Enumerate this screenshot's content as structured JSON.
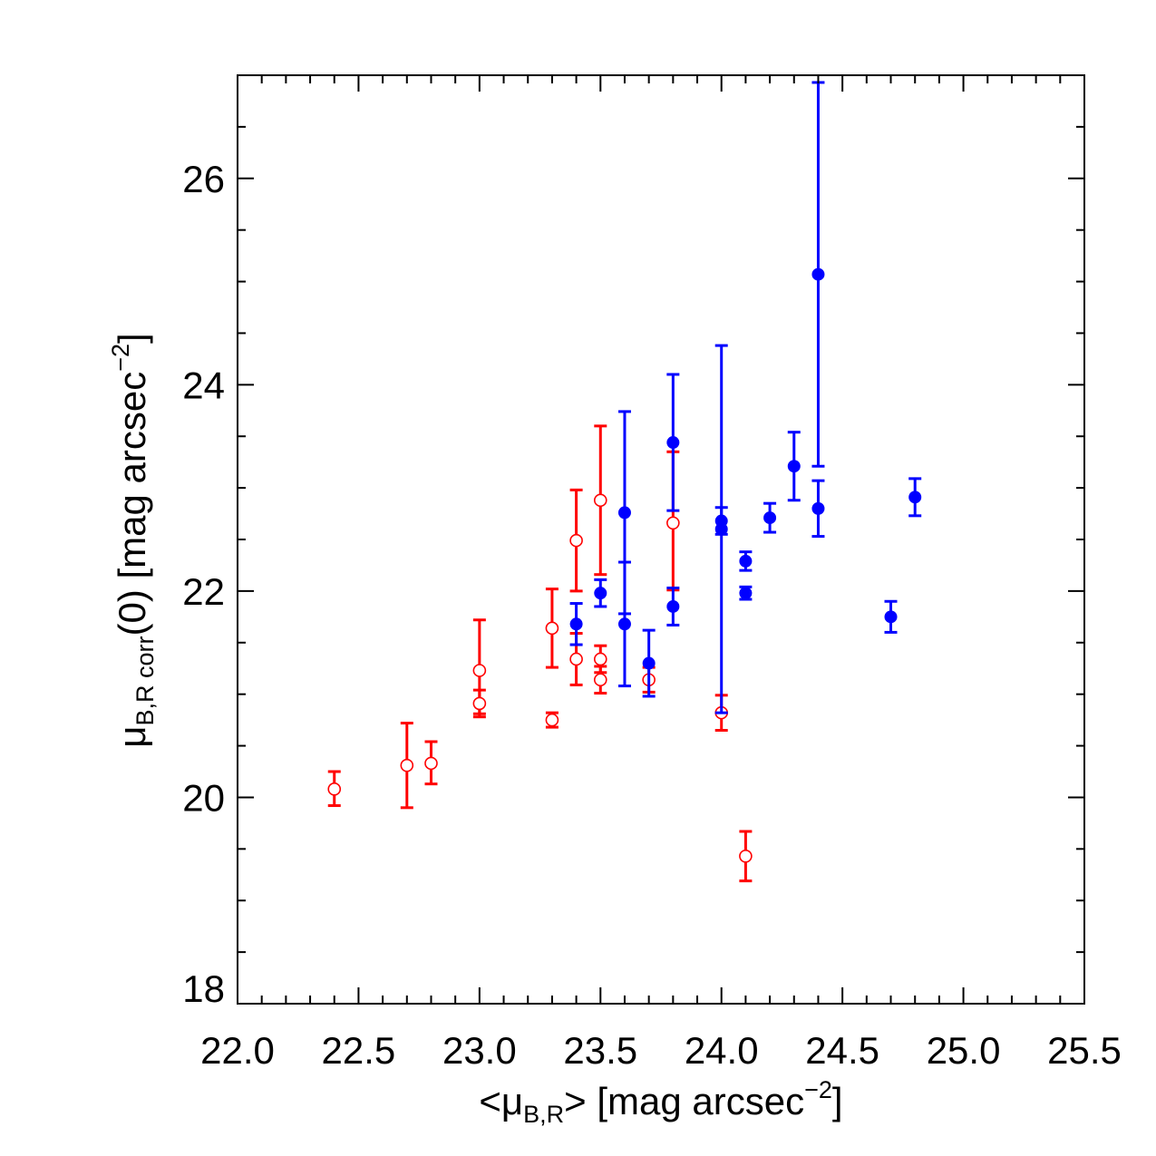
{
  "chart_data": {
    "type": "scatter",
    "title": "",
    "xlabel": {
      "prefix": "<μ",
      "sub": "B,R",
      "mid": "> [mag arcsec",
      "sup": "−2",
      "suffix": "]"
    },
    "ylabel": {
      "prefix": "μ",
      "sub": "B,R corr",
      "mid": "(0) [mag arcsec",
      "sup": "−2",
      "suffix": "]"
    },
    "xlim": [
      22.0,
      25.5
    ],
    "ylim": [
      18.0,
      27.0
    ],
    "x_ticks": [
      22.0,
      22.5,
      23.0,
      23.5,
      24.0,
      24.5,
      25.0,
      25.5
    ],
    "x_tick_labels": [
      "22.0",
      "22.5",
      "23.0",
      "23.5",
      "24.0",
      "24.5",
      "25.0",
      "25.5"
    ],
    "y_ticks": [
      18,
      20,
      22,
      24,
      26
    ],
    "y_tick_labels": [
      "18",
      "20",
      "22",
      "24",
      "26"
    ],
    "x_minor_step": 0.1,
    "y_minor_step": 0.5,
    "grid": false,
    "legend": "none",
    "series": [
      {
        "marker": "open-circle",
        "color": "#ff0000",
        "points": [
          {
            "x": 22.4,
            "y": 20.08,
            "err_lo": 0.16,
            "err_hi": 0.17
          },
          {
            "x": 22.7,
            "y": 20.31,
            "err_lo": 0.41,
            "err_hi": 0.41
          },
          {
            "x": 22.8,
            "y": 20.33,
            "err_lo": 0.2,
            "err_hi": 0.21
          },
          {
            "x": 23.0,
            "y": 21.23,
            "err_lo": 0.42,
            "err_hi": 0.49
          },
          {
            "x": 23.0,
            "y": 20.91,
            "err_lo": 0.13,
            "err_hi": 0.13
          },
          {
            "x": 23.3,
            "y": 20.75,
            "err_lo": 0.07,
            "err_hi": 0.07
          },
          {
            "x": 23.3,
            "y": 21.64,
            "err_lo": 0.38,
            "err_hi": 0.38
          },
          {
            "x": 23.4,
            "y": 22.49,
            "err_lo": 0.49,
            "err_hi": 0.49
          },
          {
            "x": 23.4,
            "y": 21.34,
            "err_lo": 0.25,
            "err_hi": 0.25
          },
          {
            "x": 23.5,
            "y": 22.88,
            "err_lo": 0.72,
            "err_hi": 0.72
          },
          {
            "x": 23.5,
            "y": 21.34,
            "err_lo": 0.13,
            "err_hi": 0.13
          },
          {
            "x": 23.5,
            "y": 21.14,
            "err_lo": 0.13,
            "err_hi": 0.13
          },
          {
            "x": 23.7,
            "y": 21.14,
            "err_lo": 0.12,
            "err_hi": 0.12
          },
          {
            "x": 23.8,
            "y": 22.66,
            "err_lo": 0.65,
            "err_hi": 0.69
          },
          {
            "x": 24.0,
            "y": 20.82,
            "err_lo": 0.17,
            "err_hi": 0.17
          },
          {
            "x": 24.1,
            "y": 19.43,
            "err_lo": 0.24,
            "err_hi": 0.24
          }
        ]
      },
      {
        "marker": "filled-circle",
        "color": "#0000ff",
        "points": [
          {
            "x": 23.4,
            "y": 21.68,
            "err_lo": 0.2,
            "err_hi": 0.2
          },
          {
            "x": 23.5,
            "y": 21.98,
            "err_lo": 0.13,
            "err_hi": 0.13
          },
          {
            "x": 23.6,
            "y": 22.76,
            "err_lo": 0.98,
            "err_hi": 0.98
          },
          {
            "x": 23.6,
            "y": 21.68,
            "err_lo": 0.6,
            "err_hi": 0.6
          },
          {
            "x": 23.7,
            "y": 21.3,
            "err_lo": 0.32,
            "err_hi": 0.32
          },
          {
            "x": 23.8,
            "y": 23.44,
            "err_lo": 0.66,
            "err_hi": 0.66
          },
          {
            "x": 23.8,
            "y": 21.85,
            "err_lo": 0.18,
            "err_hi": 0.18
          },
          {
            "x": 24.0,
            "y": 22.68,
            "err_lo": 0.13,
            "err_hi": 0.13
          },
          {
            "x": 24.0,
            "y": 22.6,
            "err_lo": 1.78,
            "err_hi": 1.78
          },
          {
            "x": 24.1,
            "y": 22.29,
            "err_lo": 0.09,
            "err_hi": 0.09
          },
          {
            "x": 24.1,
            "y": 21.98,
            "err_lo": 0.06,
            "err_hi": 0.06
          },
          {
            "x": 24.2,
            "y": 22.71,
            "err_lo": 0.14,
            "err_hi": 0.14
          },
          {
            "x": 24.3,
            "y": 23.21,
            "err_lo": 0.33,
            "err_hi": 0.33
          },
          {
            "x": 24.4,
            "y": 25.07,
            "err_lo": 1.86,
            "err_hi": 1.86
          },
          {
            "x": 24.4,
            "y": 22.8,
            "err_lo": 0.27,
            "err_hi": 0.27
          },
          {
            "x": 24.7,
            "y": 21.75,
            "err_lo": 0.15,
            "err_hi": 0.15
          },
          {
            "x": 24.8,
            "y": 22.91,
            "err_lo": 0.18,
            "err_hi": 0.18
          }
        ]
      }
    ]
  }
}
